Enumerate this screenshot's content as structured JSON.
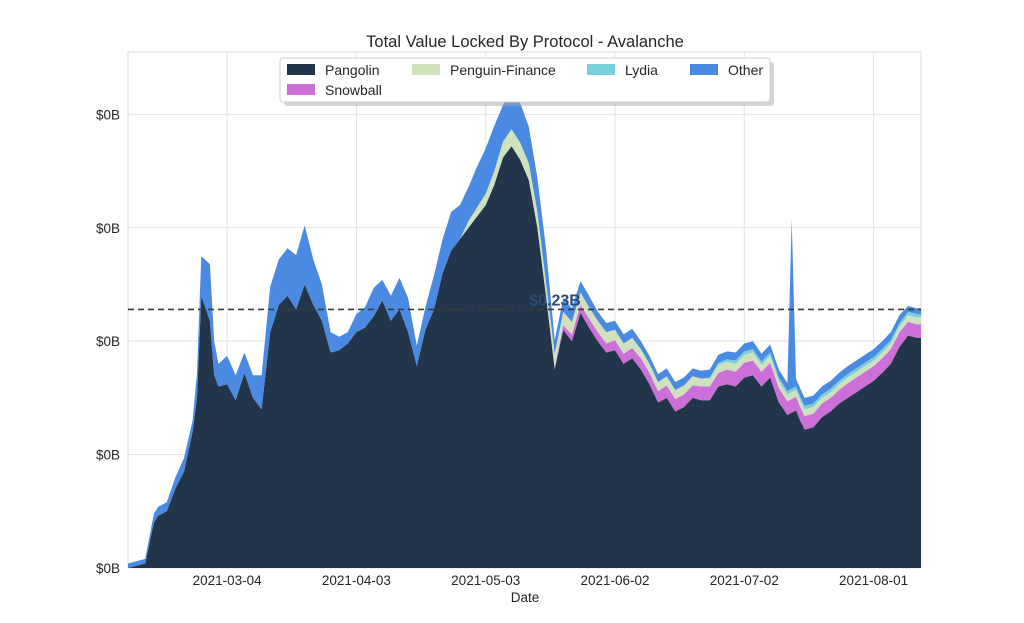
{
  "chart_data": {
    "type": "area",
    "stacked": true,
    "title": "Total Value Locked By Protocol - Avalanche",
    "xlabel": "Date",
    "ylabel": "",
    "x_start": "2021-02-09",
    "x_end": "2021-08-12",
    "xticks": [
      "2021-03-04",
      "2021-04-03",
      "2021-05-03",
      "2021-06-02",
      "2021-07-02",
      "2021-08-01"
    ],
    "ytick_labels": [
      "$0B",
      "$0B",
      "$0B",
      "$0B",
      "$0B"
    ],
    "ylim": [
      0,
      0.455
    ],
    "grid": true,
    "legend_position": "top-center",
    "average_line": {
      "value": 0.228,
      "label": "$0.23B"
    },
    "colors": {
      "Pangolin": "#22354a",
      "Snowball": "#cc6fd8",
      "Penguin-Finance": "#cfe2bd",
      "Lydia": "#79d0dd",
      "Other": "#4a8ae3",
      "avg_line": "#3a3a3a",
      "avg_label": "#2b4a78"
    },
    "x": [
      "2021-02-09",
      "2021-02-13",
      "2021-02-15",
      "2021-02-16",
      "2021-02-18",
      "2021-02-20",
      "2021-02-22",
      "2021-02-24",
      "2021-02-25",
      "2021-02-26",
      "2021-02-28",
      "2021-03-01",
      "2021-03-02",
      "2021-03-04",
      "2021-03-06",
      "2021-03-08",
      "2021-03-10",
      "2021-03-12",
      "2021-03-14",
      "2021-03-16",
      "2021-03-18",
      "2021-03-20",
      "2021-03-22",
      "2021-03-24",
      "2021-03-26",
      "2021-03-28",
      "2021-03-30",
      "2021-04-01",
      "2021-04-03",
      "2021-04-05",
      "2021-04-07",
      "2021-04-09",
      "2021-04-11",
      "2021-04-13",
      "2021-04-15",
      "2021-04-17",
      "2021-04-19",
      "2021-04-21",
      "2021-04-23",
      "2021-04-25",
      "2021-04-27",
      "2021-04-29",
      "2021-05-01",
      "2021-05-03",
      "2021-05-05",
      "2021-05-07",
      "2021-05-09",
      "2021-05-11",
      "2021-05-13",
      "2021-05-15",
      "2021-05-17",
      "2021-05-19",
      "2021-05-21",
      "2021-05-23",
      "2021-05-25",
      "2021-05-27",
      "2021-05-29",
      "2021-05-31",
      "2021-06-02",
      "2021-06-04",
      "2021-06-06",
      "2021-06-08",
      "2021-06-10",
      "2021-06-12",
      "2021-06-14",
      "2021-06-16",
      "2021-06-18",
      "2021-06-20",
      "2021-06-22",
      "2021-06-24",
      "2021-06-26",
      "2021-06-28",
      "2021-06-30",
      "2021-07-02",
      "2021-07-04",
      "2021-07-06",
      "2021-07-08",
      "2021-07-10",
      "2021-07-12",
      "2021-07-13",
      "2021-07-14",
      "2021-07-15",
      "2021-07-16",
      "2021-07-18",
      "2021-07-20",
      "2021-07-22",
      "2021-07-24",
      "2021-07-26",
      "2021-07-28",
      "2021-07-30",
      "2021-08-01",
      "2021-08-03",
      "2021-08-05",
      "2021-08-07",
      "2021-08-09",
      "2021-08-11",
      "2021-08-12"
    ],
    "series": [
      {
        "name": "Pangolin",
        "values": [
          0.0,
          0.004,
          0.04,
          0.046,
          0.05,
          0.07,
          0.085,
          0.12,
          0.15,
          0.24,
          0.218,
          0.17,
          0.16,
          0.162,
          0.148,
          0.172,
          0.15,
          0.14,
          0.208,
          0.232,
          0.24,
          0.228,
          0.25,
          0.232,
          0.218,
          0.19,
          0.192,
          0.198,
          0.208,
          0.212,
          0.222,
          0.236,
          0.218,
          0.228,
          0.208,
          0.178,
          0.21,
          0.228,
          0.26,
          0.28,
          0.29,
          0.3,
          0.31,
          0.32,
          0.338,
          0.362,
          0.372,
          0.36,
          0.342,
          0.3,
          0.24,
          0.175,
          0.21,
          0.2,
          0.225,
          0.212,
          0.2,
          0.19,
          0.192,
          0.18,
          0.185,
          0.175,
          0.162,
          0.146,
          0.15,
          0.138,
          0.142,
          0.15,
          0.148,
          0.148,
          0.16,
          0.162,
          0.16,
          0.168,
          0.17,
          0.16,
          0.168,
          0.146,
          0.135,
          0.137,
          0.139,
          0.13,
          0.122,
          0.124,
          0.133,
          0.138,
          0.145,
          0.15,
          0.155,
          0.16,
          0.165,
          0.172,
          0.18,
          0.195,
          0.205,
          0.203,
          0.203
        ]
      },
      {
        "name": "Snowball",
        "values": [
          0,
          0,
          0,
          0,
          0,
          0,
          0,
          0,
          0,
          0,
          0,
          0,
          0,
          0,
          0,
          0,
          0,
          0,
          0,
          0,
          0,
          0,
          0,
          0,
          0,
          0,
          0,
          0,
          0,
          0,
          0,
          0,
          0,
          0,
          0,
          0,
          0,
          0,
          0,
          0,
          0,
          0,
          0,
          0,
          0,
          0,
          0,
          0,
          0,
          0,
          0,
          0.002,
          0.004,
          0.006,
          0.007,
          0.008,
          0.008,
          0.008,
          0.009,
          0.009,
          0.009,
          0.01,
          0.01,
          0.01,
          0.011,
          0.011,
          0.011,
          0.011,
          0.012,
          0.012,
          0.012,
          0.013,
          0.013,
          0.013,
          0.013,
          0.013,
          0.013,
          0.013,
          0.012,
          0.012,
          0.012,
          0.012,
          0.012,
          0.012,
          0.012,
          0.012,
          0.012,
          0.013,
          0.013,
          0.013,
          0.013,
          0.013,
          0.013,
          0.013,
          0.012,
          0.012,
          0.012
        ]
      },
      {
        "name": "Penguin-Finance",
        "values": [
          0,
          0,
          0,
          0,
          0,
          0,
          0,
          0,
          0,
          0,
          0,
          0,
          0,
          0,
          0,
          0,
          0,
          0,
          0,
          0,
          0,
          0,
          0,
          0,
          0,
          0,
          0,
          0,
          0,
          0,
          0,
          0,
          0,
          0,
          0,
          0,
          0,
          0,
          0,
          0,
          0,
          0.006,
          0.008,
          0.01,
          0.012,
          0.014,
          0.015,
          0.015,
          0.015,
          0.014,
          0.012,
          0.012,
          0.012,
          0.011,
          0.011,
          0.01,
          0.01,
          0.01,
          0.009,
          0.009,
          0.009,
          0.008,
          0.008,
          0.008,
          0.008,
          0.008,
          0.008,
          0.008,
          0.007,
          0.007,
          0.007,
          0.007,
          0.007,
          0.007,
          0.007,
          0.006,
          0.006,
          0.006,
          0.006,
          0.006,
          0.006,
          0.006,
          0.006,
          0.006,
          0.005,
          0.005,
          0.005,
          0.005,
          0.005,
          0.005,
          0.005,
          0.005,
          0.005,
          0.005,
          0.006,
          0.006,
          0.006
        ]
      },
      {
        "name": "Lydia",
        "values": [
          0,
          0,
          0,
          0,
          0,
          0,
          0,
          0,
          0,
          0,
          0,
          0,
          0,
          0,
          0,
          0,
          0,
          0,
          0,
          0,
          0,
          0,
          0,
          0,
          0,
          0,
          0,
          0,
          0,
          0,
          0,
          0,
          0,
          0,
          0,
          0,
          0,
          0,
          0,
          0,
          0,
          0,
          0,
          0,
          0,
          0,
          0,
          0,
          0,
          0,
          0,
          0,
          0,
          0,
          0,
          0,
          0,
          0,
          0,
          0,
          0,
          0,
          0,
          0,
          0,
          0,
          0,
          0,
          0,
          0.001,
          0.002,
          0.002,
          0.003,
          0.003,
          0.003,
          0.003,
          0.003,
          0.003,
          0.003,
          0.003,
          0.003,
          0.003,
          0.003,
          0.003,
          0.003,
          0.003,
          0.003,
          0.003,
          0.003,
          0.003,
          0.003,
          0.003,
          0.003,
          0.003,
          0.003,
          0.003,
          0.003
        ]
      },
      {
        "name": "Other",
        "values": [
          0.004,
          0.004,
          0.008,
          0.008,
          0.008,
          0.01,
          0.012,
          0.01,
          0.022,
          0.035,
          0.05,
          0.03,
          0.02,
          0.025,
          0.022,
          0.018,
          0.02,
          0.03,
          0.04,
          0.04,
          0.042,
          0.048,
          0.052,
          0.04,
          0.032,
          0.018,
          0.012,
          0.01,
          0.016,
          0.018,
          0.025,
          0.018,
          0.022,
          0.028,
          0.03,
          0.018,
          0.02,
          0.03,
          0.03,
          0.034,
          0.03,
          0.03,
          0.036,
          0.04,
          0.04,
          0.032,
          0.04,
          0.035,
          0.032,
          0.03,
          0.03,
          0.012,
          0.012,
          0.012,
          0.01,
          0.01,
          0.008,
          0.008,
          0.008,
          0.008,
          0.008,
          0.007,
          0.007,
          0.007,
          0.007,
          0.007,
          0.007,
          0.007,
          0.007,
          0.007,
          0.007,
          0.007,
          0.007,
          0.007,
          0.007,
          0.007,
          0.007,
          0.007,
          0.007,
          0.15,
          0.007,
          0.007,
          0.007,
          0.007,
          0.007,
          0.007,
          0.007,
          0.007,
          0.007,
          0.007,
          0.007,
          0.007,
          0.007,
          0.007,
          0.005,
          0.005,
          0.005
        ]
      }
    ]
  }
}
